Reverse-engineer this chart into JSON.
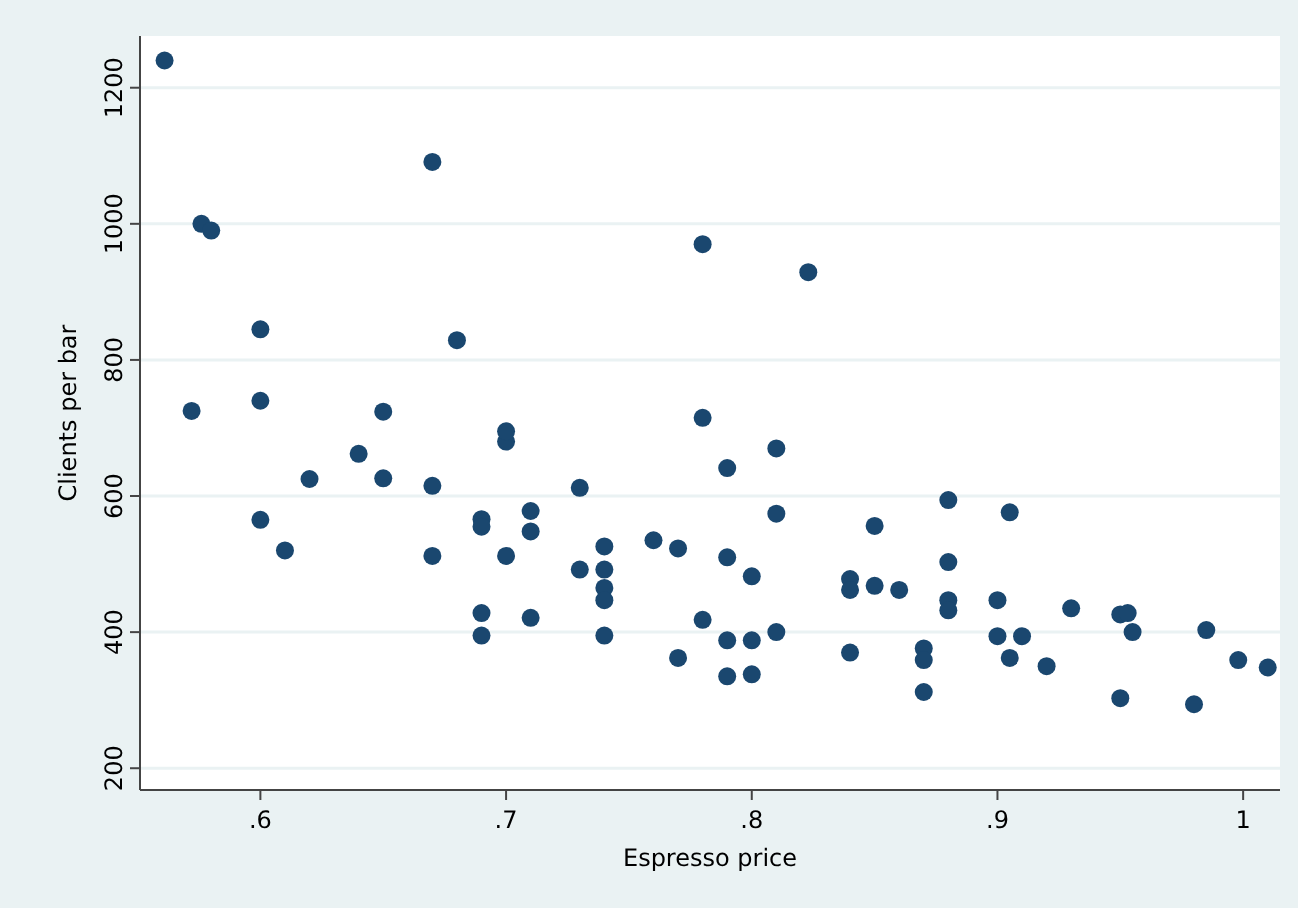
{
  "chart_data": {
    "type": "scatter",
    "xlabel": "Espresso price",
    "ylabel": "Clients per bar",
    "xlim": [
      0.551,
      1.015
    ],
    "ylim": [
      168,
      1276
    ],
    "xticks": [
      {
        "value": 0.6,
        "label": ".6"
      },
      {
        "value": 0.7,
        "label": ".7"
      },
      {
        "value": 0.8,
        "label": ".8"
      },
      {
        "value": 0.9,
        "label": ".9"
      },
      1
    ],
    "yticks": [
      200,
      400,
      600,
      800,
      1000,
      1200
    ],
    "grid": "y",
    "marker": "circle",
    "series": [
      {
        "color": "#1a476f",
        "x": [
          0.561,
          0.572,
          0.576,
          0.58,
          0.6,
          0.6,
          0.6,
          0.61,
          0.62,
          0.64,
          0.65,
          0.65,
          0.67,
          0.67,
          0.67,
          0.68,
          0.69,
          0.69,
          0.69,
          0.69,
          0.7,
          0.7,
          0.7,
          0.71,
          0.71,
          0.71,
          0.73,
          0.73,
          0.74,
          0.74,
          0.74,
          0.74,
          0.74,
          0.76,
          0.77,
          0.77,
          0.78,
          0.78,
          0.78,
          0.79,
          0.79,
          0.79,
          0.79,
          0.8,
          0.8,
          0.8,
          0.81,
          0.81,
          0.81,
          0.823,
          0.84,
          0.84,
          0.84,
          0.85,
          0.85,
          0.86,
          0.87,
          0.87,
          0.87,
          0.88,
          0.88,
          0.88,
          0.88,
          0.9,
          0.9,
          0.905,
          0.905,
          0.91,
          0.92,
          0.93,
          0.95,
          0.953,
          0.955,
          0.95,
          0.98,
          0.985,
          0.998,
          1.01
        ],
        "values": [
          1240,
          725,
          1000,
          990,
          845,
          740,
          565,
          520,
          625,
          662,
          724,
          626,
          1091,
          615,
          512,
          829,
          566,
          555,
          428,
          395,
          680,
          695,
          512,
          578,
          548,
          421,
          612,
          492,
          526,
          492,
          465,
          447,
          395,
          535,
          523,
          362,
          970,
          715,
          418,
          510,
          641,
          335,
          388,
          482,
          388,
          338,
          574,
          400,
          670,
          929,
          478,
          462,
          370,
          556,
          468,
          462,
          376,
          359,
          312,
          594,
          503,
          447,
          432,
          447,
          394,
          576,
          362,
          394,
          350,
          435,
          426,
          428,
          400,
          303,
          294,
          403,
          359,
          348
        ]
      }
    ]
  }
}
